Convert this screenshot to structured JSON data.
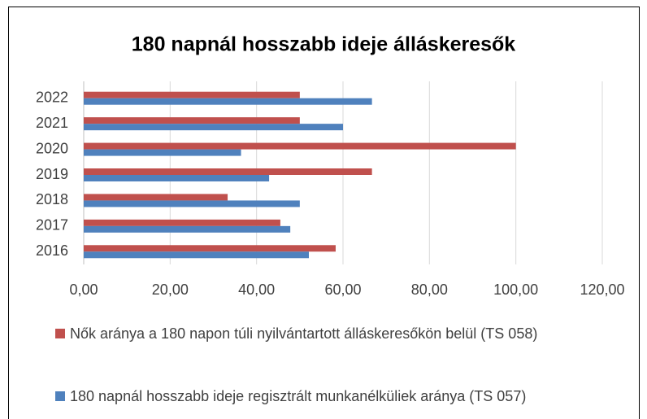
{
  "chart_data": {
    "type": "bar",
    "orientation": "horizontal",
    "title": "180 napnál hosszabb ideje álláskeresők",
    "categories": [
      "2016",
      "2017",
      "2018",
      "2019",
      "2020",
      "2021",
      "2022"
    ],
    "series": [
      {
        "name": "Nők aránya a 180 napon túli nyilvántartott álláskeresőkön belül (TS 058)",
        "color": "#c0504d",
        "values": [
          58.3,
          45.5,
          33.3,
          66.7,
          100,
          50,
          50
        ]
      },
      {
        "name": "180 napnál hosszabb ideje regisztrált munkanélküliek aránya (TS 057)",
        "color": "#4f81bd",
        "values": [
          52.1,
          47.8,
          50,
          42.9,
          36.4,
          60,
          66.7
        ]
      }
    ],
    "xlim": [
      0,
      120
    ],
    "xticks": [
      {
        "value": 0,
        "label": "0,00"
      },
      {
        "value": 20,
        "label": "20,00"
      },
      {
        "value": 40,
        "label": "40,00"
      },
      {
        "value": 60,
        "label": "60,00"
      },
      {
        "value": 80,
        "label": "80,00"
      },
      {
        "value": 100,
        "label": "100,00"
      },
      {
        "value": 120,
        "label": "120,00"
      }
    ],
    "grid": true,
    "legend": "bottom"
  }
}
